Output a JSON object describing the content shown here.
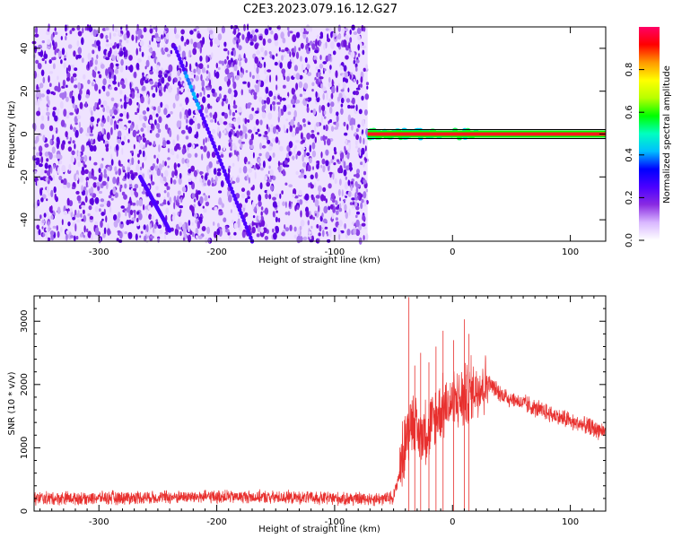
{
  "title": "C2E3.2023.079.16.12.G27",
  "colors": {
    "snr_line": "#e8302e",
    "frame": "#000000",
    "scatter_dark": "#5a00e0",
    "scatter_light": "#c9a8f7"
  },
  "chart_data": [
    {
      "type": "heatmap",
      "xlabel": "Height of straight line (km)",
      "ylabel": "Frequency (Hz)",
      "xlim": [
        -355,
        130
      ],
      "ylim": [
        -50,
        50
      ],
      "xticks": [
        -300,
        -200,
        -100,
        0,
        100
      ],
      "xtick_labels": [
        "-300",
        "-200",
        "-100",
        "0",
        "100"
      ],
      "yticks": [
        -40,
        -20,
        0,
        20,
        40
      ],
      "ytick_labels": [
        "-40",
        "-20",
        "0",
        "20",
        "40"
      ],
      "colorbar": {
        "label": "Normalized spectral amplitude",
        "range": [
          0.0,
          1.0
        ],
        "ticks": [
          0.0,
          0.2,
          0.4,
          0.6,
          0.8
        ],
        "tick_labels": [
          "0.0",
          "0.2",
          "0.4",
          "0.6",
          "0.8"
        ],
        "colormap": [
          "#ffffff",
          "#d9b8ff",
          "#8a2be2",
          "#4b00ff",
          "#0000ff",
          "#00bfff",
          "#00ffc0",
          "#00ff00",
          "#b8ff00",
          "#ffff00",
          "#ff9900",
          "#ff0000",
          "#ff0066"
        ]
      },
      "noise_region": {
        "x_range": [
          -355,
          -72
        ],
        "freq_range": [
          -50,
          50
        ],
        "amplitude": [
          0.05,
          0.25
        ]
      },
      "streaks": [
        {
          "x": [
            -235,
            -170
          ],
          "freq": [
            40,
            -50
          ],
          "amplitude": 0.35
        },
        {
          "x": [
            -265,
            -240
          ],
          "freq": [
            -20,
            -45
          ],
          "amplitude": 0.25
        }
      ],
      "carrier": {
        "x_range": [
          -72,
          130
        ],
        "freq": 0,
        "peak_amplitude": 1.0
      }
    },
    {
      "type": "line",
      "xlabel": "Height of straight line (km)",
      "ylabel": "SNR (10 * v/v)",
      "xlim": [
        -355,
        130
      ],
      "ylim": [
        0,
        3400
      ],
      "xticks": [
        -300,
        -200,
        -100,
        0,
        100
      ],
      "xtick_labels": [
        "-300",
        "-200",
        "-100",
        "0",
        "100"
      ],
      "yticks": [
        0,
        1000,
        2000,
        3000
      ],
      "ytick_labels": [
        "0",
        "1000",
        "2000",
        "3000"
      ],
      "series": [
        {
          "x": [
            -355,
            -300,
            -250,
            -200,
            -150,
            -100,
            -60,
            -50,
            -45,
            -40,
            -35,
            -30,
            -20,
            -10,
            0,
            10,
            20,
            30,
            40,
            60,
            80,
            100,
            120,
            130
          ],
          "y": [
            200,
            210,
            220,
            230,
            220,
            200,
            190,
            220,
            600,
            1100,
            1500,
            1200,
            1300,
            1600,
            1700,
            1800,
            1950,
            2050,
            1850,
            1700,
            1550,
            1420,
            1300,
            1260
          ]
        }
      ],
      "spikes": [
        {
          "x": -37,
          "y": 3380
        },
        {
          "x": -32,
          "y": 2300
        },
        {
          "x": -27,
          "y": 2500
        },
        {
          "x": -20,
          "y": 2350
        },
        {
          "x": -14,
          "y": 2600
        },
        {
          "x": -8,
          "y": 2850
        },
        {
          "x": 1,
          "y": 2700
        },
        {
          "x": 10,
          "y": 3030
        },
        {
          "x": 14,
          "y": 2800
        }
      ]
    }
  ]
}
